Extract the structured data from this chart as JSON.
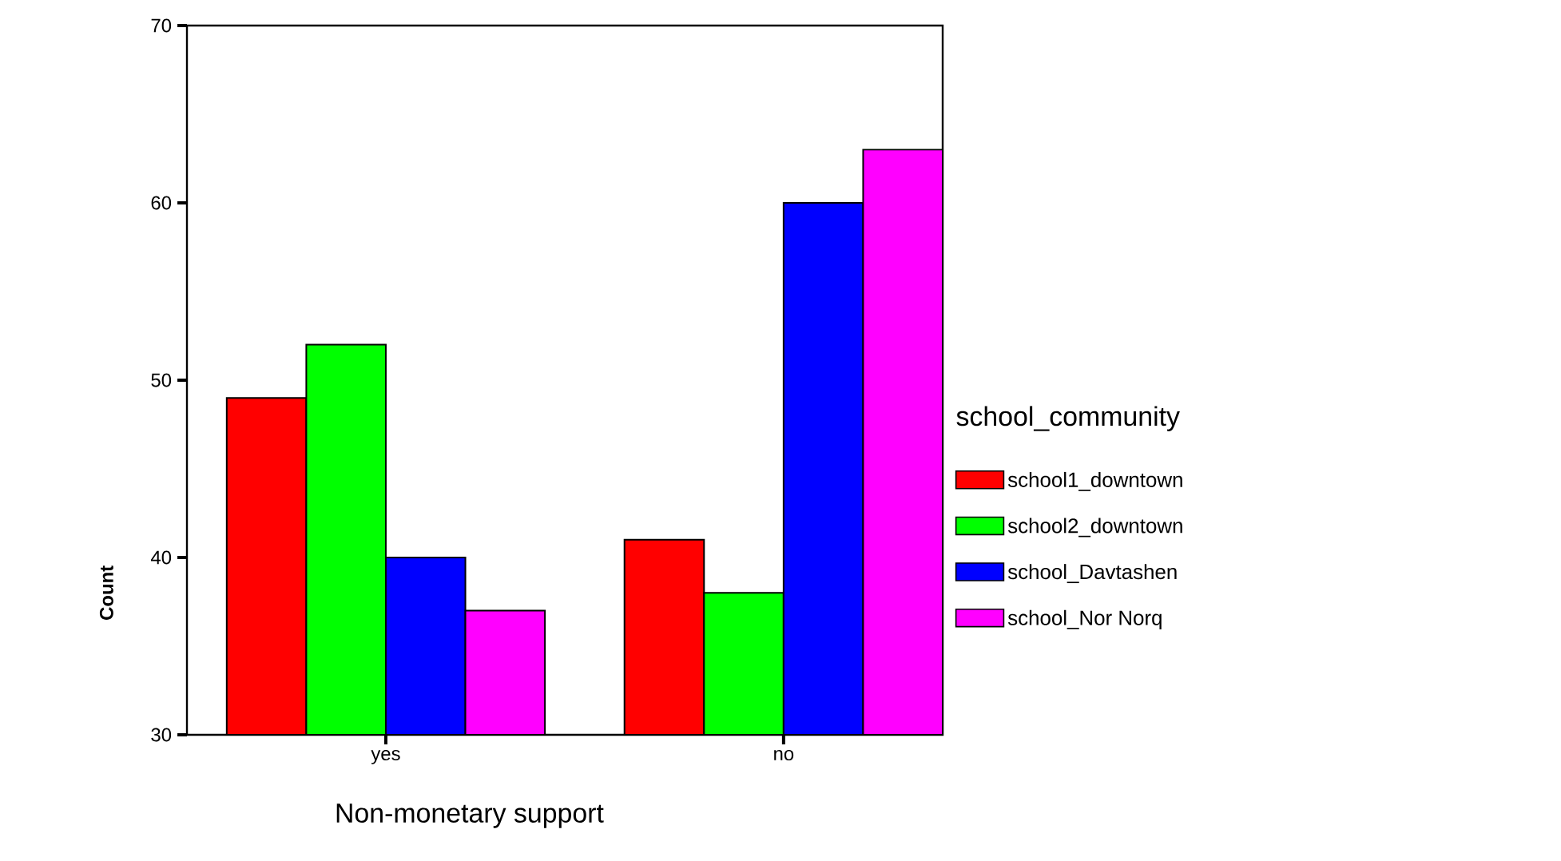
{
  "chart_data": {
    "type": "bar",
    "categories": [
      "yes",
      "no"
    ],
    "series": [
      {
        "name": "school1_downtown",
        "color": "#ff0000",
        "values": [
          49,
          41
        ]
      },
      {
        "name": "school2_downtown",
        "color": "#00ff00",
        "values": [
          52,
          38
        ]
      },
      {
        "name": "school_Davtashen",
        "color": "#0000ff",
        "values": [
          40,
          60
        ]
      },
      {
        "name": "school_Nor Norq",
        "color": "#ff00ff",
        "values": [
          37,
          63
        ]
      }
    ],
    "xlabel": "Non-monetary support",
    "ylabel": "Count",
    "legend_title": "school_community",
    "ylim": [
      30,
      70
    ],
    "yticks": [
      30,
      40,
      50,
      60,
      70
    ],
    "legend": "right",
    "grid": false
  }
}
